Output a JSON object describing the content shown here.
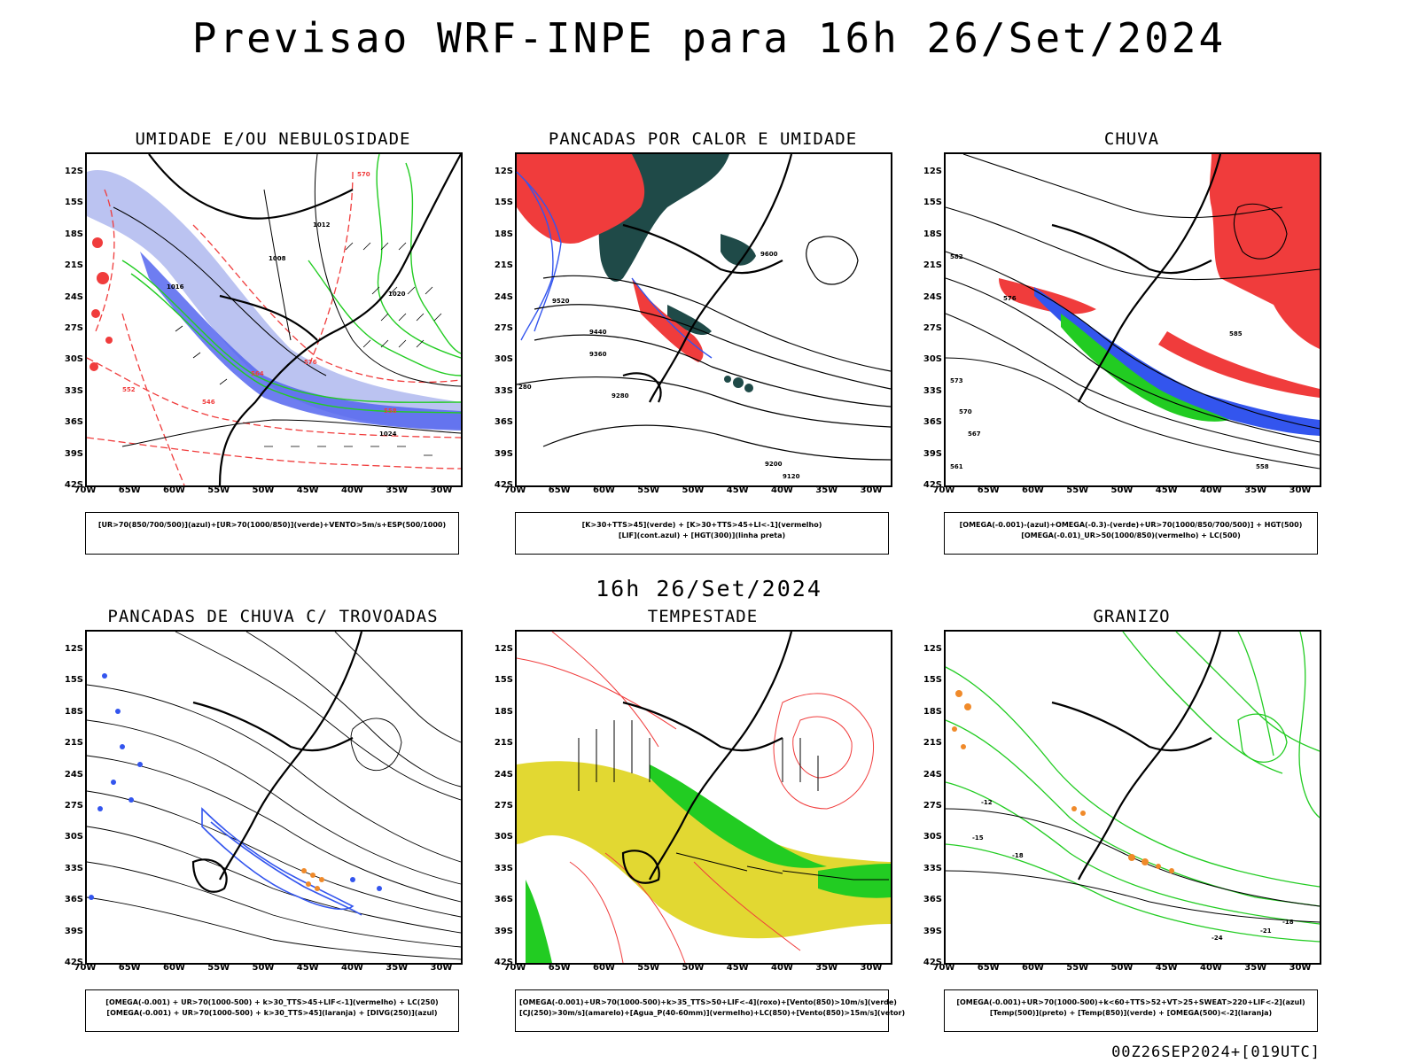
{
  "title": "Previsao WRF-INPE  para 16h 26/Set/2024",
  "middle_title": "16h 26/Set/2024",
  "footer": "00Z26SEP2024+[019UTC]",
  "axes": {
    "lat_labels": [
      "12S",
      "15S",
      "18S",
      "21S",
      "24S",
      "27S",
      "30S",
      "33S",
      "36S",
      "39S",
      "42S"
    ],
    "lon_labels": [
      "70W",
      "65W",
      "60W",
      "55W",
      "50W",
      "45W",
      "40W",
      "35W",
      "30W"
    ]
  },
  "panels": [
    {
      "title": "UMIDADE E/OU NEBULOSIDADE",
      "legend": [
        "[UR>70(850/700/500)](azul)+[UR>70(1000/850)](verde)+VENTO>5m/s+ESP(500/1000)"
      ]
    },
    {
      "title": "PANCADAS POR CALOR E UMIDADE",
      "legend": [
        "[K>30+TTS>45](verde) + [K>30+TTS>45+LI<-1](vermelho)",
        "[LIF](cont.azul) + [HGT(300)](linha preta)"
      ]
    },
    {
      "title": "CHUVA",
      "legend": [
        "[OMEGA(-0.001)-(azul)+OMEGA(-0.3)-(verde)+UR>70(1000/850/700/500)] + HGT(500)",
        "[OMEGA(-0.01)_UR>50(1000/850)(vermelho) + LC(500)"
      ]
    },
    {
      "title": "PANCADAS DE CHUVA C/ TROVOADAS",
      "legend": [
        "[OMEGA(-0.001) + UR>70(1000-500) + k>30_TTS>45+LIF<-1](vermelho) + LC(250)",
        "[OMEGA(-0.001) + UR>70(1000-500) + k>30_TTS>45](laranja) + [DIVG(250)](azul)"
      ]
    },
    {
      "title": "TEMPESTADE",
      "legend": [
        "[OMEGA(-0.001)+UR>70(1000-500)+k>35_TTS>50+LIF<-4](roxo)+[Vento(850)>10m/s](verde)",
        "[CJ(250)>30m/s](amarelo)+[Agua_P(40-60mm)](vermelho)+LC(850)+[Vento(850)>15m/s](vetor)"
      ]
    },
    {
      "title": "GRANIZO",
      "legend": [
        "[OMEGA(-0.001)+UR>70(1000-500)+k<60+TTS>52+VT>25+SWEAT>220+LIF<-2](azul)",
        "[Temp(500)](preto) + [Temp(850)](verde) + [OMEGA(500)<-2](laranja)"
      ]
    }
  ],
  "contour_labels": {
    "p1": [
      "1008",
      "1012",
      "1016",
      "1020",
      "1024",
      "570",
      "576",
      "564",
      "552",
      "546",
      "558"
    ],
    "p2": [
      "9600",
      "9520",
      "9440",
      "9360",
      "9280",
      "9200",
      "9120",
      "280"
    ],
    "p3": [
      "582",
      "576",
      "573",
      "570",
      "567",
      "561",
      "558",
      "585"
    ],
    "p6": [
      "-15",
      "-18",
      "-21",
      "-24",
      "-12",
      "-18"
    ]
  },
  "colors": {
    "red": "#f03c3c",
    "green": "#22cc22",
    "blue": "#3355ee",
    "lightblue": "#aab4ee",
    "yellow": "#e2d832",
    "darkteal": "#1f4a48",
    "orange": "#f08a2a"
  }
}
